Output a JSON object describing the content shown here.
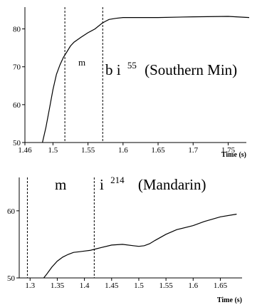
{
  "chart_data": [
    {
      "type": "line",
      "xlabel": "Time (s)",
      "xlim": [
        1.46,
        1.78
      ],
      "ylim": [
        50,
        85
      ],
      "xticks": [
        "1.46",
        "1.5",
        "1.55",
        "1.6",
        "1.65",
        "1.7",
        "1.75"
      ],
      "yticks": [
        "50",
        "60",
        "70",
        "80"
      ],
      "markers": [
        1.517,
        1.571
      ],
      "annotation": {
        "m": "m",
        "main": "b i",
        "sup": "55",
        "lang": "(Southern Min)"
      },
      "series": [
        {
          "x": [
            1.485,
            1.49,
            1.495,
            1.5,
            1.505,
            1.51,
            1.515,
            1.52,
            1.525,
            1.53,
            1.54,
            1.55,
            1.56,
            1.57,
            1.575,
            1.58,
            1.59,
            1.6,
            1.62,
            1.65,
            1.7,
            1.75,
            1.78
          ],
          "y": [
            50,
            54,
            59,
            64,
            68,
            70.5,
            72.5,
            74,
            75.5,
            76.5,
            77.8,
            79,
            80,
            81.5,
            82,
            82.5,
            82.8,
            83,
            83,
            83,
            83.2,
            83.3,
            83
          ]
        }
      ]
    },
    {
      "type": "line",
      "xlabel": "Time (s)",
      "xlim": [
        1.28,
        1.69
      ],
      "ylim": [
        50,
        62
      ],
      "xticks": [
        "1.3",
        "1.35",
        "1.4",
        "1.45",
        "1.5",
        "1.55",
        "1.6",
        "1.65"
      ],
      "yticks": [
        "50",
        "60"
      ],
      "markers": [
        1.295,
        1.418
      ],
      "annotation": {
        "m": "m",
        "main": "i",
        "sup": "214",
        "lang": "(Mandarin)"
      },
      "series": [
        {
          "x": [
            1.325,
            1.33,
            1.34,
            1.35,
            1.36,
            1.37,
            1.38,
            1.39,
            1.4,
            1.41,
            1.42,
            1.43,
            1.45,
            1.47,
            1.49,
            1.5,
            1.51,
            1.52,
            1.53,
            1.55,
            1.57,
            1.6,
            1.62,
            1.65,
            1.68
          ],
          "y": [
            50,
            50.5,
            51.6,
            52.5,
            53.1,
            53.5,
            53.8,
            53.9,
            54,
            54.1,
            54.3,
            54.5,
            54.9,
            55.0,
            54.8,
            54.7,
            54.8,
            55.1,
            55.6,
            56.5,
            57.2,
            57.8,
            58.4,
            59.1,
            59.5
          ]
        }
      ]
    }
  ]
}
